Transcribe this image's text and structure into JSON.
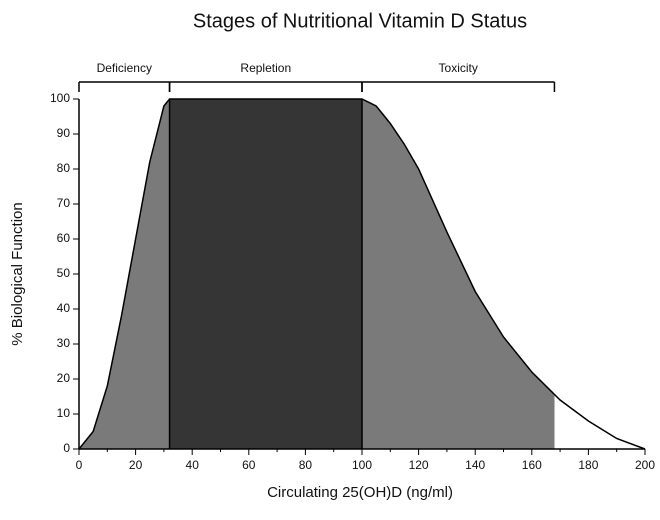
{
  "chart_data": {
    "type": "area",
    "title": "Stages of Nutritional Vitamin D Status",
    "x_label": "Circulating 25(OH)D (ng/ml)",
    "y_label": "% Biological Function",
    "x": [
      0,
      5,
      10,
      15,
      20,
      25,
      30,
      32,
      100,
      105,
      110,
      115,
      120,
      130,
      140,
      150,
      160,
      170,
      180,
      190,
      200
    ],
    "series": [
      {
        "values": [
          0,
          5,
          18,
          38,
          60,
          82,
          98,
          100,
          100,
          98,
          93,
          87,
          80,
          62,
          45,
          32,
          22,
          14,
          8,
          3,
          0
        ]
      }
    ],
    "stages": [
      {
        "name": "Deficiency",
        "start": 0,
        "end": 32,
        "color": "#7a7a7a"
      },
      {
        "name": "Repletion",
        "start": 32,
        "end": 100,
        "color": "#353535"
      },
      {
        "name": "Toxicity",
        "start": 100,
        "end": 168,
        "color": "#7a7a7a"
      }
    ],
    "xlim": [
      0,
      200
    ],
    "xticks": [
      0,
      20,
      40,
      60,
      80,
      100,
      120,
      140,
      160,
      180,
      200
    ],
    "ylim": [
      0,
      100
    ],
    "yticks": [
      0,
      10,
      20,
      30,
      40,
      50,
      60,
      70,
      80,
      90,
      100
    ]
  }
}
